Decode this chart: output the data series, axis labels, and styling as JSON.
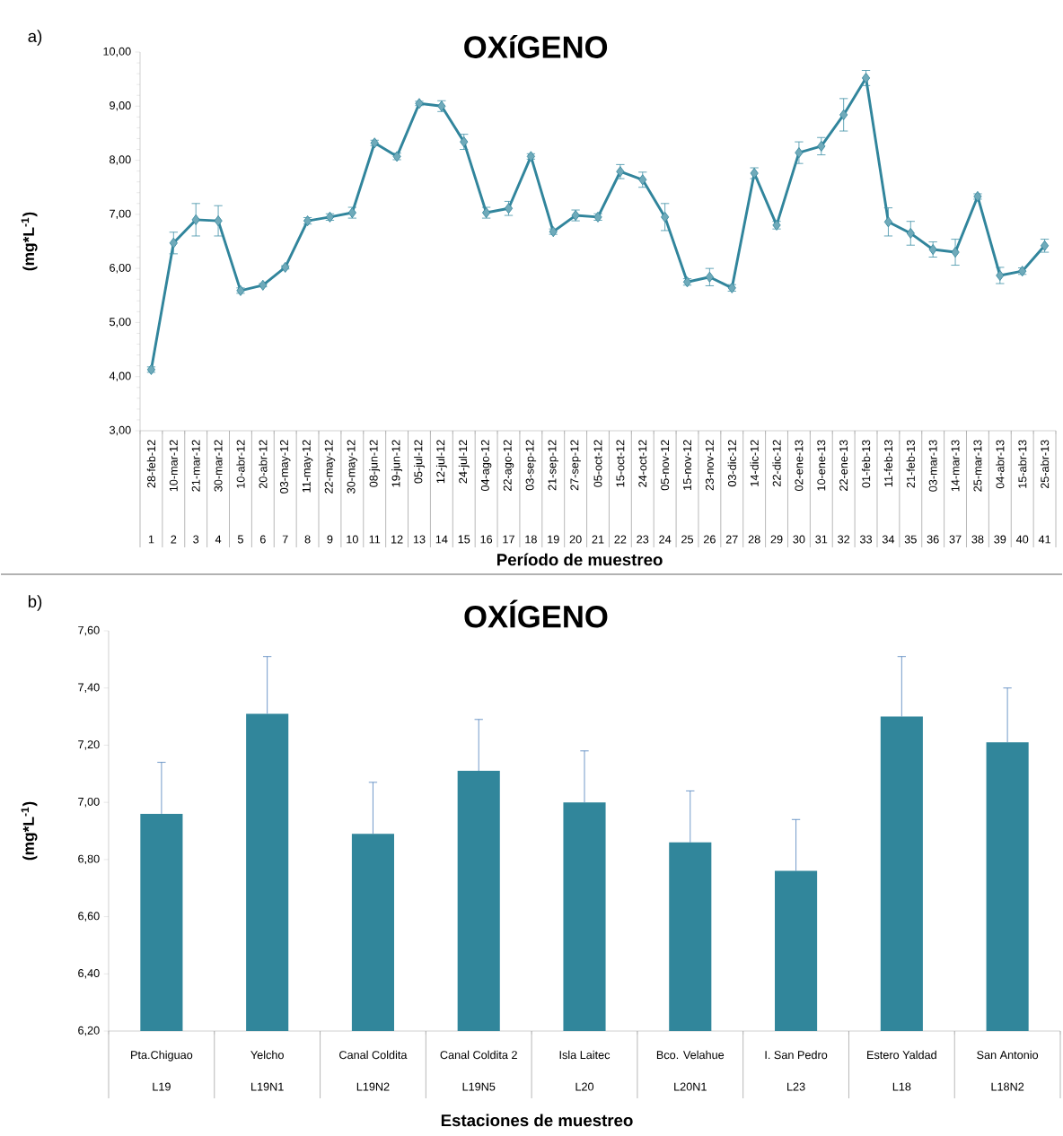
{
  "chart_data": [
    {
      "type": "line",
      "title": "OXíGENO",
      "xlabel": "Período de muestreo",
      "ylabel": "(mg*L$^{-1}$)",
      "annotations": [
        "a)",
        "1",
        "2",
        "3",
        "4",
        "5",
        "6",
        "7",
        "8",
        "9",
        "10",
        "11",
        "12",
        "13",
        "14",
        "15",
        "16",
        "17",
        "18",
        "19",
        "20",
        "21",
        "22",
        "23",
        "24",
        "25",
        "26",
        "27",
        "28",
        "29",
        "30",
        "31",
        "32",
        "33",
        "34",
        "35",
        "36",
        "37",
        "38",
        "39",
        "40",
        "41"
      ],
      "categories": [
        "28-feb-12",
        "10-mar-12",
        "21-mar-12",
        "30-mar-12",
        "10-abr-12",
        "20-abr-12",
        "03-may-12",
        "11-may-12",
        "22-may-12",
        "30-may-12",
        "08-jun-12",
        "19-jun-12",
        "05-jul-12",
        "12-jul-12",
        "24-jul-12",
        "04-ago-12",
        "22-ago-12",
        "03-sep-12",
        "21-sep-12",
        "27-sep-12",
        "05-oct-12",
        "15-oct-12",
        "24-oct-12",
        "05-nov-12",
        "15-nov-12",
        "23-nov-12",
        "03-dic-12",
        "14-dic-12",
        "22-dic-12",
        "02-ene-13",
        "10-ene-13",
        "22-ene-13",
        "01-feb-13",
        "11-feb-13",
        "21-feb-13",
        "03-mar-13",
        "14-mar-13",
        "25-mar-13",
        "04-abr-13",
        "15-abr-13",
        "25-abr-13"
      ],
      "values": [
        4.13,
        6.47,
        6.9,
        6.88,
        5.59,
        5.69,
        6.02,
        6.88,
        6.95,
        7.03,
        8.32,
        8.07,
        9.05,
        9.0,
        8.34,
        7.03,
        7.11,
        8.07,
        6.68,
        6.98,
        6.95,
        7.79,
        7.64,
        6.95,
        5.75,
        5.84,
        5.64,
        7.76,
        6.8,
        8.14,
        8.26,
        8.84,
        9.52,
        6.86,
        6.65,
        6.35,
        6.3,
        7.33,
        5.87,
        5.95,
        6.42
      ],
      "errors": [
        0.05,
        0.2,
        0.3,
        0.28,
        0.05,
        0.03,
        0.03,
        0.06,
        0.06,
        0.1,
        0.05,
        0.06,
        0.04,
        0.1,
        0.14,
        0.1,
        0.13,
        0.05,
        0.05,
        0.1,
        0.06,
        0.13,
        0.14,
        0.25,
        0.06,
        0.16,
        0.06,
        0.1,
        0.07,
        0.2,
        0.16,
        0.3,
        0.14,
        0.26,
        0.22,
        0.14,
        0.24,
        0.05,
        0.15,
        0.06,
        0.12
      ],
      "color": "#31859c",
      "marker": "diamond",
      "ylim": [
        3,
        10
      ],
      "yticks": [
        {
          "value": 3,
          "label": "3,00"
        },
        {
          "value": 4,
          "label": "4,00"
        },
        {
          "value": 5,
          "label": "5,00"
        },
        {
          "value": 6,
          "label": "6,00"
        },
        {
          "value": 7,
          "label": "7,00"
        },
        {
          "value": 8,
          "label": "8,00"
        },
        {
          "value": 9,
          "label": "9,00"
        },
        {
          "value": 10,
          "label": "10,00"
        }
      ]
    },
    {
      "type": "bar",
      "title": "OXÍGENO",
      "xlabel": "Estaciones de muestreo",
      "ylabel": "(mg*L$^{-1}$)",
      "annotations": [
        "b)",
        "L19",
        "L19N1",
        "L19N2",
        "L19N5",
        "L20",
        "L20N1",
        "L23",
        "L18",
        "L18N2"
      ],
      "categories": [
        "Pta.Chiguao",
        "Yelcho",
        "Canal Coldita",
        "Canal Coldita 2",
        "Isla Laitec",
        "Bco. Velahue",
        "I. San Pedro",
        "Estero Yaldad",
        "San Antonio"
      ],
      "values": [
        6.96,
        7.31,
        6.89,
        7.11,
        7.0,
        6.86,
        6.76,
        7.3,
        7.21
      ],
      "errors": [
        [
          6.96,
          7.14
        ],
        [
          7.31,
          7.51
        ],
        [
          6.89,
          7.07
        ],
        [
          7.11,
          7.29
        ],
        [
          7.0,
          7.18
        ],
        [
          6.86,
          7.04
        ],
        [
          6.76,
          6.94
        ],
        [
          7.3,
          7.51
        ],
        [
          7.21,
          7.4
        ]
      ],
      "color": "#31869b",
      "ylim": [
        6.2,
        7.6
      ],
      "yticks": [
        {
          "value": 6.2,
          "label": "6,20"
        },
        {
          "value": 6.4,
          "label": "6,40"
        },
        {
          "value": 6.6,
          "label": "6,60"
        },
        {
          "value": 6.8,
          "label": "6,80"
        },
        {
          "value": 7.0,
          "label": "7,00"
        },
        {
          "value": 7.2,
          "label": "7,20"
        },
        {
          "value": 7.4,
          "label": "7,40"
        },
        {
          "value": 7.6,
          "label": "7,60"
        }
      ]
    }
  ]
}
